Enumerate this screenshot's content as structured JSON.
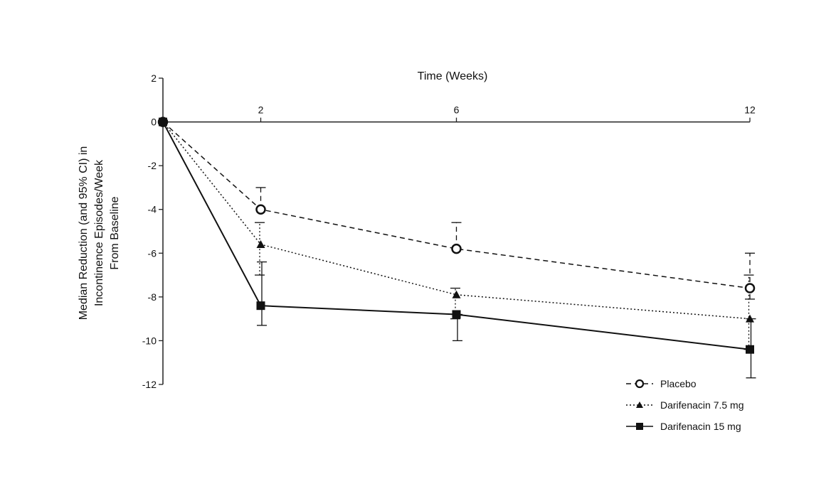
{
  "chart_data": {
    "type": "line",
    "title": "",
    "xlabel": "Time (Weeks)",
    "ylabel": [
      "Median Reduction (and 95% CI) in",
      "Incontinence Episodes/Week",
      "From Baseline"
    ],
    "x_ticks": [
      "2",
      "6",
      "12"
    ],
    "x_tick_values": [
      2,
      6,
      12
    ],
    "xlim": [
      0,
      12
    ],
    "y_ticks": [
      "2",
      "0",
      "-2",
      "-4",
      "-6",
      "-8",
      "-10",
      "-12"
    ],
    "y_tick_values": [
      2,
      0,
      -2,
      -4,
      -6,
      -8,
      -10,
      -12
    ],
    "ylim": [
      -12,
      2
    ],
    "grid": false,
    "legend_position": "bottom-right",
    "series": [
      {
        "name": "Placebo",
        "line_style": "dashed",
        "marker": "open-circle",
        "color": "#111111",
        "x": [
          0,
          2,
          6,
          12
        ],
        "y": [
          0,
          -4.0,
          -5.8,
          -7.6
        ],
        "ci": [
          null,
          [
            -4.0,
            -3.0
          ],
          [
            -5.8,
            -4.6
          ],
          [
            -8.1,
            -6.0
          ]
        ]
      },
      {
        "name": "Darifenacin 7.5 mg",
        "line_style": "dotted",
        "marker": "triangle",
        "color": "#111111",
        "x": [
          0,
          2,
          6,
          12
        ],
        "y": [
          0,
          -5.6,
          -7.9,
          -9.0
        ],
        "ci": [
          null,
          [
            -7.0,
            -4.6
          ],
          [
            -9.0,
            -7.6
          ],
          [
            -10.4,
            -7.0
          ]
        ]
      },
      {
        "name": "Darifenacin 15 mg",
        "line_style": "solid",
        "marker": "filled-square",
        "color": "#111111",
        "x": [
          0,
          2,
          6,
          12
        ],
        "y": [
          0,
          -8.4,
          -8.8,
          -10.4
        ],
        "ci": [
          null,
          [
            -9.3,
            -6.4
          ],
          [
            -10.0,
            -8.8
          ],
          [
            -11.7,
            -9.0
          ]
        ]
      }
    ]
  }
}
